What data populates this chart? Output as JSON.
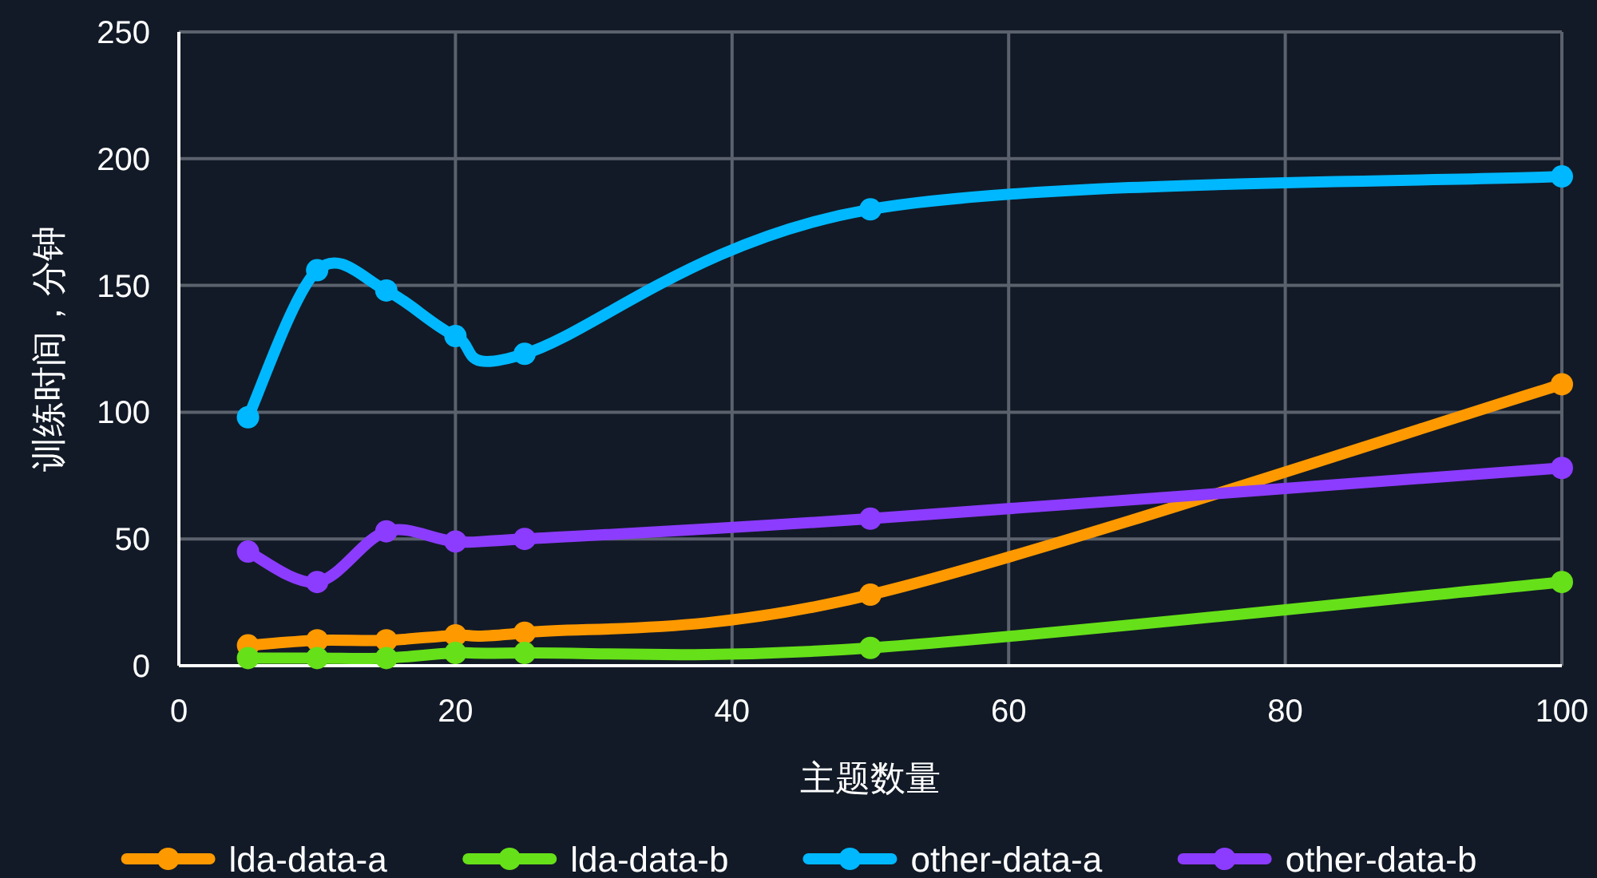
{
  "chart_data": {
    "type": "line",
    "xlabel": "主题数量",
    "ylabel": "训练时间，分钟",
    "x": [
      5,
      10,
      15,
      20,
      25,
      50,
      100
    ],
    "xlim": [
      0,
      100
    ],
    "ylim": [
      0,
      250
    ],
    "xticks": [
      0,
      20,
      40,
      60,
      80,
      100
    ],
    "yticks": [
      0,
      50,
      100,
      150,
      200,
      250
    ],
    "grid": true,
    "legend": "bottom",
    "marker": "circle",
    "series": [
      {
        "name": "lda-data-a",
        "color": "#ff9900",
        "values": [
          8,
          10,
          10,
          12,
          13,
          28,
          111
        ]
      },
      {
        "name": "lda-data-b",
        "color": "#66e019",
        "values": [
          3,
          3,
          3,
          5,
          5,
          7,
          33
        ]
      },
      {
        "name": "other-data-a",
        "color": "#00b8ff",
        "values": [
          98,
          156,
          148,
          130,
          123,
          180,
          193
        ]
      },
      {
        "name": "other-data-b",
        "color": "#8c3cff",
        "values": [
          45,
          33,
          53,
          49,
          50,
          58,
          78
        ]
      }
    ]
  }
}
